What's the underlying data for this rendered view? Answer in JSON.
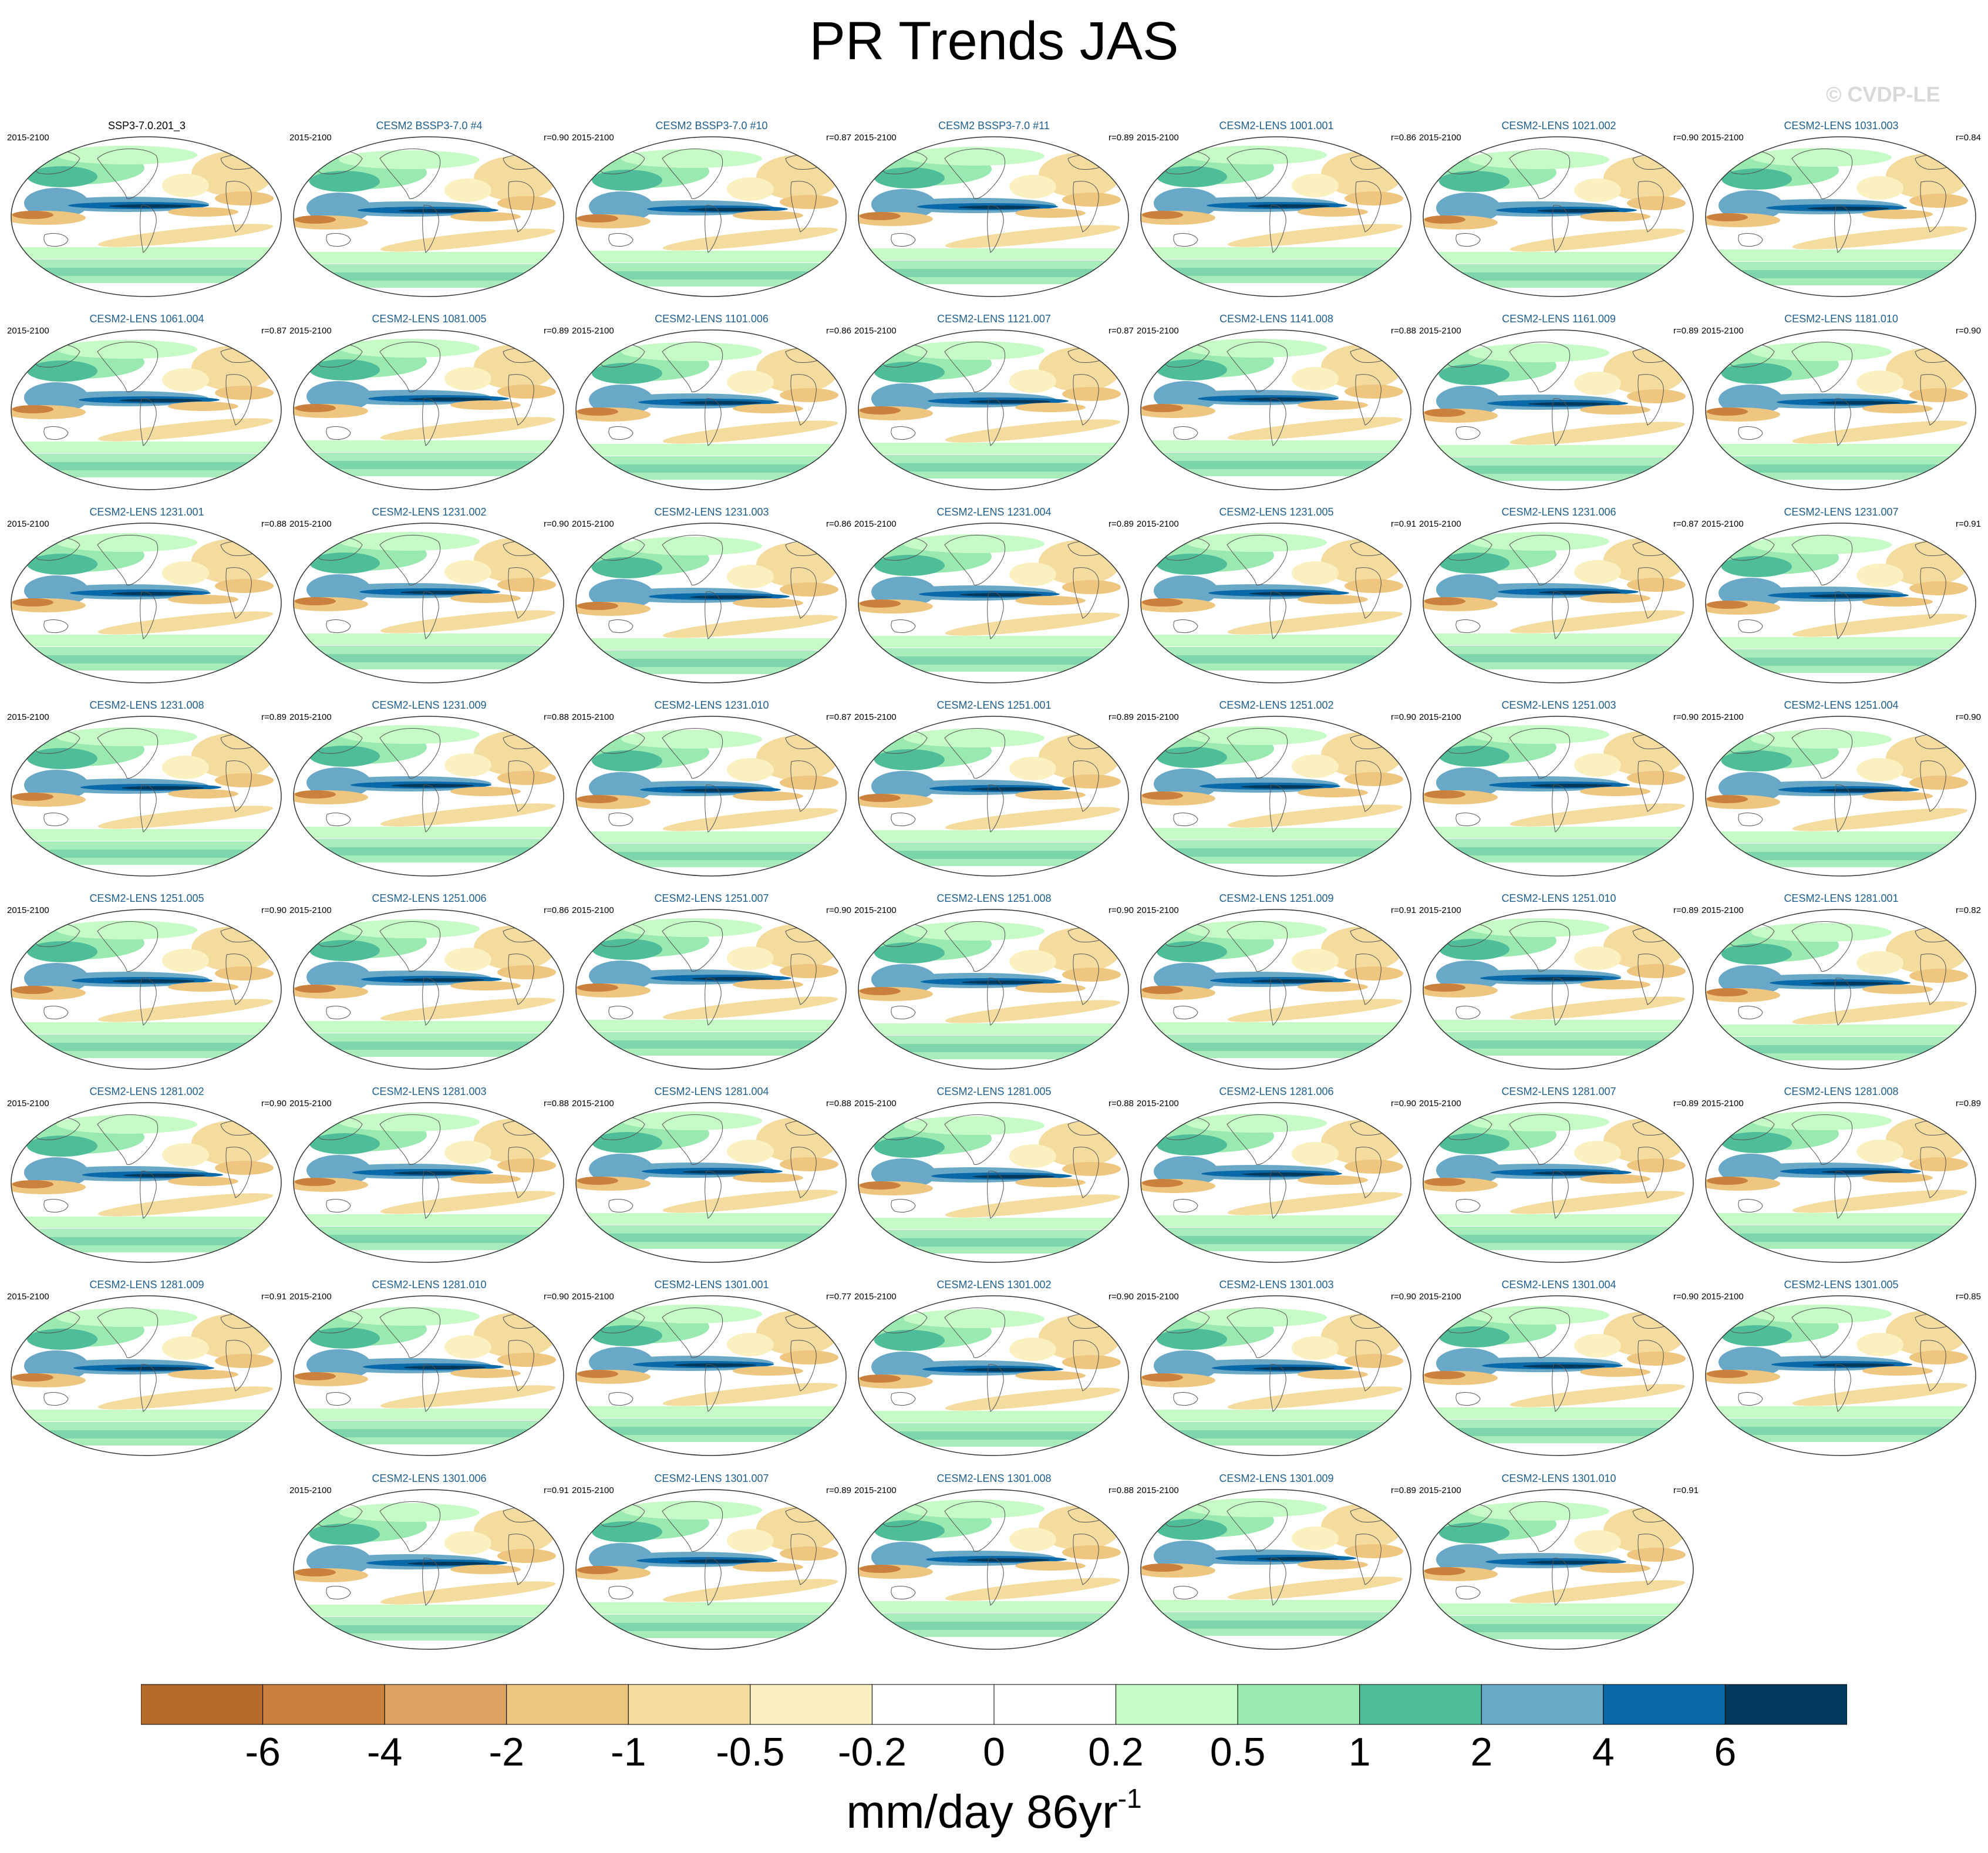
{
  "title": "PR Trends JAS",
  "watermark": "© CVDP-LE",
  "period": "2015-2100",
  "panels": [
    {
      "name": "SSP3-7.0.201_3",
      "r": "",
      "obs": true
    },
    {
      "name": "CESM2 BSSP3-7.0 #4",
      "r": "r=0.90"
    },
    {
      "name": "CESM2 BSSP3-7.0 #10",
      "r": "r=0.87"
    },
    {
      "name": "CESM2 BSSP3-7.0 #11",
      "r": "r=0.89"
    },
    {
      "name": "CESM2-LENS 1001.001",
      "r": "r=0.86"
    },
    {
      "name": "CESM2-LENS 1021.002",
      "r": "r=0.90"
    },
    {
      "name": "CESM2-LENS 1031.003",
      "r": "r=0.84"
    },
    {
      "name": "CESM2-LENS 1061.004",
      "r": "r=0.87"
    },
    {
      "name": "CESM2-LENS 1081.005",
      "r": "r=0.89"
    },
    {
      "name": "CESM2-LENS 1101.006",
      "r": "r=0.86"
    },
    {
      "name": "CESM2-LENS 1121.007",
      "r": "r=0.87"
    },
    {
      "name": "CESM2-LENS 1141.008",
      "r": "r=0.88"
    },
    {
      "name": "CESM2-LENS 1161.009",
      "r": "r=0.89"
    },
    {
      "name": "CESM2-LENS 1181.010",
      "r": "r=0.90"
    },
    {
      "name": "CESM2-LENS 1231.001",
      "r": "r=0.88"
    },
    {
      "name": "CESM2-LENS 1231.002",
      "r": "r=0.90"
    },
    {
      "name": "CESM2-LENS 1231.003",
      "r": "r=0.86"
    },
    {
      "name": "CESM2-LENS 1231.004",
      "r": "r=0.89"
    },
    {
      "name": "CESM2-LENS 1231.005",
      "r": "r=0.91"
    },
    {
      "name": "CESM2-LENS 1231.006",
      "r": "r=0.87"
    },
    {
      "name": "CESM2-LENS 1231.007",
      "r": "r=0.91"
    },
    {
      "name": "CESM2-LENS 1231.008",
      "r": "r=0.89"
    },
    {
      "name": "CESM2-LENS 1231.009",
      "r": "r=0.88"
    },
    {
      "name": "CESM2-LENS 1231.010",
      "r": "r=0.87"
    },
    {
      "name": "CESM2-LENS 1251.001",
      "r": "r=0.89"
    },
    {
      "name": "CESM2-LENS 1251.002",
      "r": "r=0.90"
    },
    {
      "name": "CESM2-LENS 1251.003",
      "r": "r=0.90"
    },
    {
      "name": "CESM2-LENS 1251.004",
      "r": "r=0.90"
    },
    {
      "name": "CESM2-LENS 1251.005",
      "r": "r=0.90"
    },
    {
      "name": "CESM2-LENS 1251.006",
      "r": "r=0.86"
    },
    {
      "name": "CESM2-LENS 1251.007",
      "r": "r=0.90"
    },
    {
      "name": "CESM2-LENS 1251.008",
      "r": "r=0.90"
    },
    {
      "name": "CESM2-LENS 1251.009",
      "r": "r=0.91"
    },
    {
      "name": "CESM2-LENS 1251.010",
      "r": "r=0.89"
    },
    {
      "name": "CESM2-LENS 1281.001",
      "r": "r=0.82"
    },
    {
      "name": "CESM2-LENS 1281.002",
      "r": "r=0.90"
    },
    {
      "name": "CESM2-LENS 1281.003",
      "r": "r=0.88"
    },
    {
      "name": "CESM2-LENS 1281.004",
      "r": "r=0.88"
    },
    {
      "name": "CESM2-LENS 1281.005",
      "r": "r=0.88"
    },
    {
      "name": "CESM2-LENS 1281.006",
      "r": "r=0.90"
    },
    {
      "name": "CESM2-LENS 1281.007",
      "r": "r=0.89"
    },
    {
      "name": "CESM2-LENS 1281.008",
      "r": "r=0.89"
    },
    {
      "name": "CESM2-LENS 1281.009",
      "r": "r=0.91"
    },
    {
      "name": "CESM2-LENS 1281.010",
      "r": "r=0.90"
    },
    {
      "name": "CESM2-LENS 1301.001",
      "r": "r=0.77"
    },
    {
      "name": "CESM2-LENS 1301.002",
      "r": "r=0.90"
    },
    {
      "name": "CESM2-LENS 1301.003",
      "r": "r=0.90"
    },
    {
      "name": "CESM2-LENS 1301.004",
      "r": "r=0.90"
    },
    {
      "name": "CESM2-LENS 1301.005",
      "r": "r=0.85"
    },
    {
      "name": "CESM2-LENS 1301.006",
      "r": "r=0.91"
    },
    {
      "name": "CESM2-LENS 1301.007",
      "r": "r=0.89"
    },
    {
      "name": "CESM2-LENS 1301.008",
      "r": "r=0.88"
    },
    {
      "name": "CESM2-LENS 1301.009",
      "r": "r=0.89"
    },
    {
      "name": "CESM2-LENS 1301.010",
      "r": "r=0.91"
    }
  ],
  "colorbar": {
    "colors": [
      "#b5692a",
      "#ca813e",
      "#dca25f",
      "#efc67f",
      "#f4dc9f",
      "#fbf0c0",
      "#ffffff",
      "#ffffff",
      "#c6fac6",
      "#99e9b0",
      "#4fbd9a",
      "#6aa8c8",
      "#0a69a8",
      "#013a5c"
    ],
    "tick_labels": [
      "-6",
      "-4",
      "-2",
      "-1",
      "-0.5",
      "-0.2",
      "0",
      "0.2",
      "0.5",
      "1",
      "2",
      "4",
      "6"
    ],
    "units": "mm/day 86yr",
    "units_superscript": "-1"
  }
}
